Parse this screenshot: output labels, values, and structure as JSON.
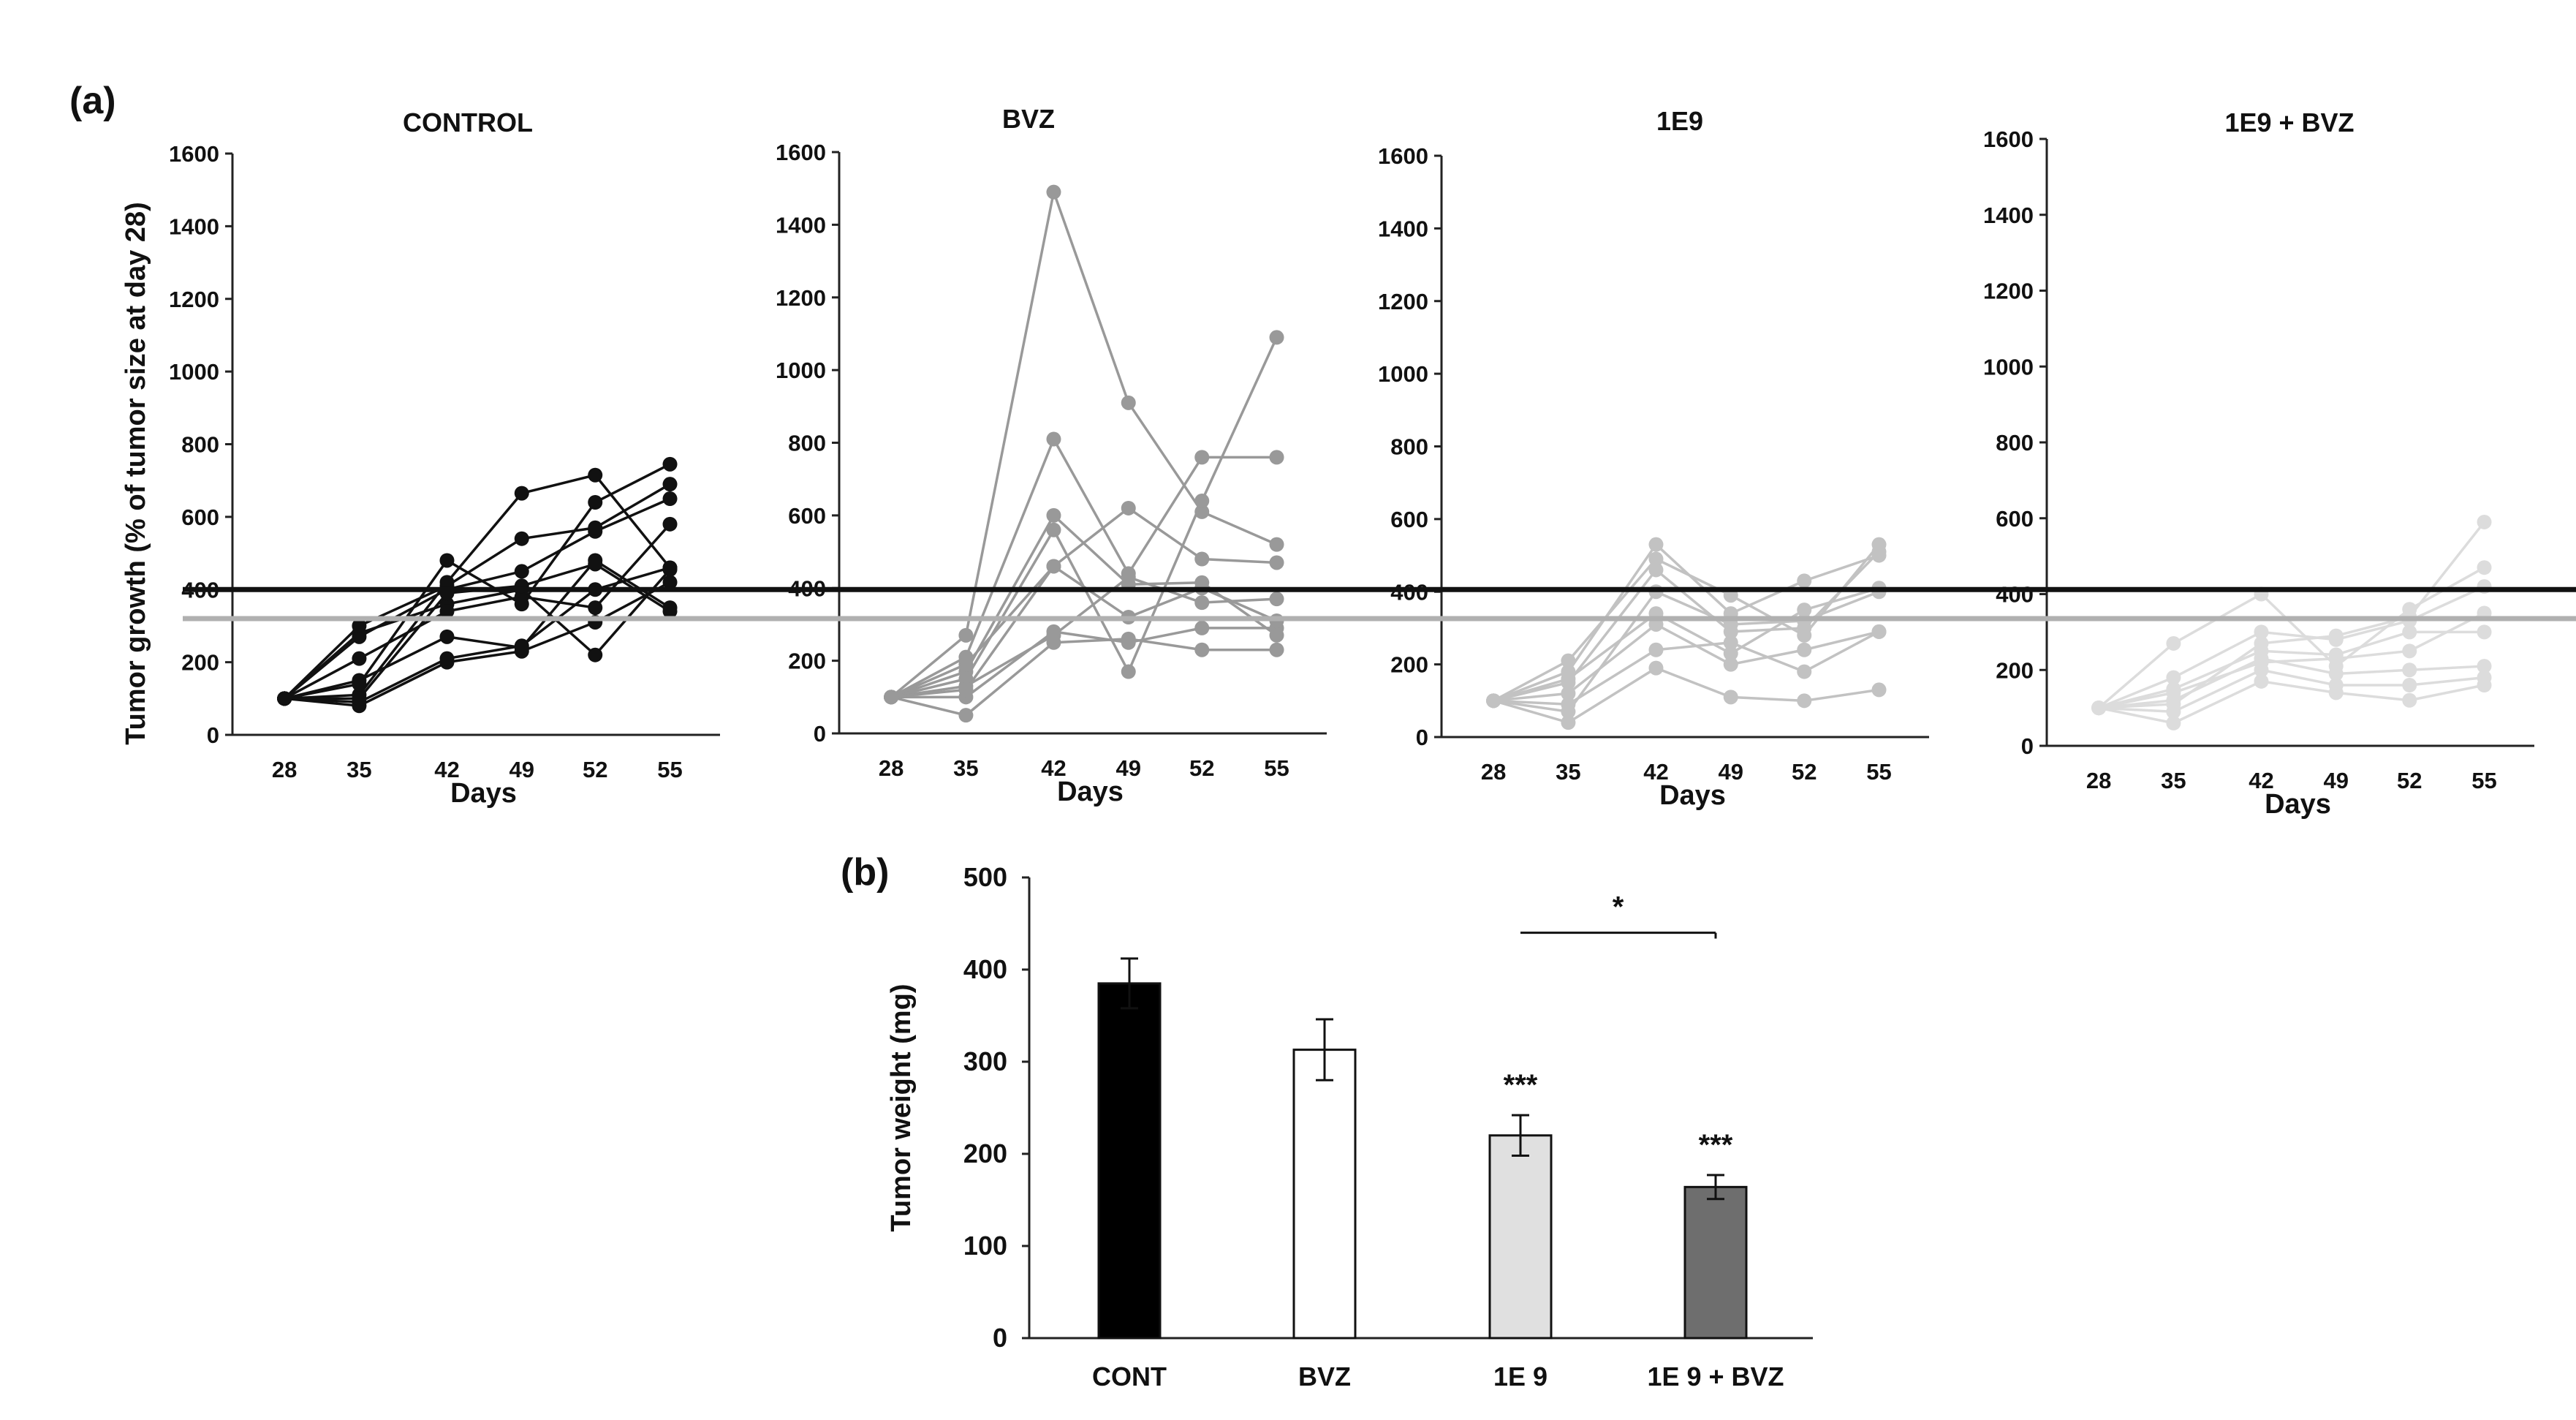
{
  "panel_labels": {
    "a": "(a)",
    "b": "(b)"
  },
  "chart_data": [
    {
      "type": "line",
      "title": "CONTROL",
      "xlabel": "Days",
      "ylabel": "Tumor growth (% of tumor size at day 28)",
      "categories": [
        "28",
        "35",
        "42",
        "49",
        "52",
        "55"
      ],
      "ylim": [
        0,
        1600
      ],
      "yticks": [
        "0",
        "200",
        "400",
        "600",
        "800",
        "1000",
        "1200",
        "1400",
        "1600"
      ],
      "color": "#111111",
      "series": [
        {
          "name": "m1",
          "values": [
            100,
            80,
            200,
            230,
            310,
            420
          ]
        },
        {
          "name": "m2",
          "values": [
            100,
            90,
            210,
            245,
            400,
            460
          ]
        },
        {
          "name": "m3",
          "values": [
            100,
            150,
            270,
            240,
            480,
            350
          ]
        },
        {
          "name": "m4",
          "values": [
            100,
            280,
            360,
            400,
            220,
            455
          ]
        },
        {
          "name": "m5",
          "values": [
            100,
            210,
            340,
            380,
            350,
            580
          ]
        },
        {
          "name": "m6",
          "values": [
            100,
            270,
            400,
            450,
            560,
            650
          ]
        },
        {
          "name": "m7",
          "values": [
            100,
            300,
            410,
            540,
            570,
            690
          ]
        },
        {
          "name": "m8",
          "values": [
            100,
            110,
            420,
            665,
            715,
            460
          ]
        },
        {
          "name": "m9",
          "values": [
            100,
            140,
            480,
            360,
            640,
            745
          ]
        },
        {
          "name": "m10",
          "values": [
            100,
            100,
            390,
            410,
            470,
            340
          ]
        }
      ]
    },
    {
      "type": "line",
      "title": "BVZ",
      "xlabel": "Days",
      "ylabel": "",
      "categories": [
        "28",
        "35",
        "42",
        "49",
        "52",
        "55"
      ],
      "ylim": [
        0,
        1600
      ],
      "yticks": [
        "0",
        "200",
        "400",
        "600",
        "800",
        "1000",
        "1200",
        "1400",
        "1600"
      ],
      "color": "#999999",
      "series": [
        {
          "name": "m1",
          "values": [
            100,
            50,
            250,
            260,
            230,
            230
          ]
        },
        {
          "name": "m2",
          "values": [
            100,
            100,
            280,
            250,
            290,
            290
          ]
        },
        {
          "name": "m3",
          "values": [
            100,
            130,
            270,
            430,
            360,
            370
          ]
        },
        {
          "name": "m4",
          "values": [
            100,
            170,
            600,
            410,
            415,
            270
          ]
        },
        {
          "name": "m5",
          "values": [
            100,
            270,
            1490,
            910,
            610,
            520
          ]
        },
        {
          "name": "m6",
          "values": [
            100,
            210,
            810,
            440,
            760,
            760
          ]
        },
        {
          "name": "m7",
          "values": [
            100,
            150,
            560,
            170,
            640,
            1090
          ]
        },
        {
          "name": "m8",
          "values": [
            100,
            120,
            460,
            620,
            480,
            470
          ]
        },
        {
          "name": "m9",
          "values": [
            100,
            190,
            460,
            320,
            400,
            310
          ]
        }
      ]
    },
    {
      "type": "line",
      "title": "1E9",
      "xlabel": "Days",
      "ylabel": "",
      "categories": [
        "28",
        "35",
        "42",
        "49",
        "52",
        "55"
      ],
      "ylim": [
        0,
        1600
      ],
      "yticks": [
        "0",
        "200",
        "400",
        "600",
        "800",
        "1000",
        "1200",
        "1400",
        "1600"
      ],
      "color": "#c2c2c2",
      "series": [
        {
          "name": "m1",
          "values": [
            100,
            40,
            190,
            110,
            100,
            130
          ]
        },
        {
          "name": "m2",
          "values": [
            100,
            90,
            240,
            260,
            180,
            290
          ]
        },
        {
          "name": "m3",
          "values": [
            100,
            120,
            310,
            200,
            240,
            290
          ]
        },
        {
          "name": "m4",
          "values": [
            100,
            150,
            460,
            290,
            300,
            510
          ]
        },
        {
          "name": "m5",
          "values": [
            100,
            180,
            530,
            340,
            430,
            500
          ]
        },
        {
          "name": "m6",
          "values": [
            100,
            210,
            490,
            390,
            280,
            530
          ]
        },
        {
          "name": "m7",
          "values": [
            100,
            160,
            340,
            230,
            350,
            410
          ]
        },
        {
          "name": "m8",
          "values": [
            100,
            70,
            400,
            310,
            320,
            400
          ]
        }
      ]
    },
    {
      "type": "line",
      "title": "1E9 + BVZ",
      "xlabel": "Days",
      "ylabel": "",
      "categories": [
        "28",
        "35",
        "42",
        "49",
        "52",
        "55"
      ],
      "ylim": [
        0,
        1600
      ],
      "yticks": [
        "0",
        "200",
        "400",
        "600",
        "800",
        "1000",
        "1200",
        "1400",
        "1600"
      ],
      "color": "#dcdcdc",
      "series": [
        {
          "name": "m1",
          "values": [
            100,
            60,
            170,
            140,
            120,
            160
          ]
        },
        {
          "name": "m2",
          "values": [
            100,
            90,
            200,
            160,
            160,
            180
          ]
        },
        {
          "name": "m3",
          "values": [
            100,
            120,
            230,
            190,
            200,
            210
          ]
        },
        {
          "name": "m4",
          "values": [
            100,
            150,
            250,
            240,
            300,
            300
          ]
        },
        {
          "name": "m5",
          "values": [
            100,
            180,
            300,
            280,
            330,
            420
          ]
        },
        {
          "name": "m6",
          "values": [
            100,
            270,
            400,
            210,
            360,
            470
          ]
        },
        {
          "name": "m7",
          "values": [
            100,
            110,
            270,
            290,
            340,
            590
          ]
        },
        {
          "name": "m8",
          "values": [
            100,
            140,
            220,
            230,
            250,
            350
          ]
        }
      ]
    },
    {
      "type": "bar",
      "title": "",
      "xlabel": "",
      "ylabel": "Tumor weight (mg)",
      "categories": [
        "CONT",
        "BVZ",
        "1E 9",
        "1E 9 + BVZ"
      ],
      "values": [
        385,
        313,
        220,
        164
      ],
      "errors": [
        27,
        33,
        22,
        13
      ],
      "bar_colors": [
        "#000000",
        "#ffffff",
        "#e0e0e0",
        "#6e6e6e"
      ],
      "ylim": [
        0,
        500
      ],
      "yticks": [
        "0",
        "100",
        "200",
        "300",
        "400",
        "500"
      ],
      "significance": [
        "",
        "",
        "***",
        "***"
      ],
      "bracket": {
        "from": "1E 9",
        "to": "1E 9 + BVZ",
        "label": "*"
      }
    }
  ],
  "reference_lines": [
    {
      "name": "control-reference",
      "value": 400,
      "color": "#111111"
    },
    {
      "name": "treated-reference",
      "value": 320,
      "color": "#b0b0b0"
    }
  ]
}
